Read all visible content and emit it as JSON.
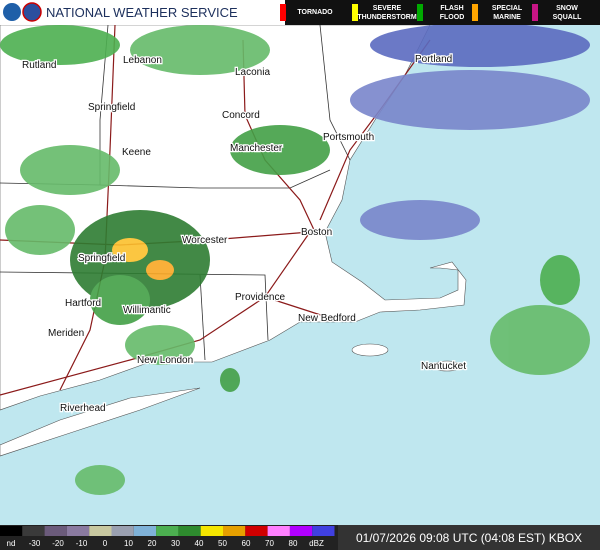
{
  "header": {
    "title": "NATIONAL WEATHER SERVICE"
  },
  "warnings": [
    {
      "label": "TORNADO",
      "color": "#ff0000"
    },
    {
      "label": "SEVERE THUNDERSTORM",
      "color": "#ffff00"
    },
    {
      "label": "FLASH FLOOD",
      "color": "#00aa00"
    },
    {
      "label": "SPECIAL MARINE",
      "color": "#ffa500"
    },
    {
      "label": "SNOW SQUALL",
      "color": "#c71585"
    }
  ],
  "cities": [
    "Rutland",
    "Lebanon",
    "Laconia",
    "Portland",
    "Springfield",
    "Concord",
    "Portsmouth",
    "Keene",
    "Manchester",
    "Worcester",
    "Boston",
    "Springfield",
    "Hartford",
    "Providence",
    "Willimantic",
    "New Bedford",
    "Meriden",
    "New London",
    "Nantucket",
    "Riverhead"
  ],
  "scale": {
    "labels": [
      "nd",
      "-30",
      "-20",
      "-10",
      "0",
      "10",
      "20",
      "30",
      "40",
      "50",
      "60",
      "70",
      "80",
      "dBZ"
    ]
  },
  "footer": {
    "timestamp": "01/07/2026 09:08 UTC (04:08 EST) KBOX"
  }
}
